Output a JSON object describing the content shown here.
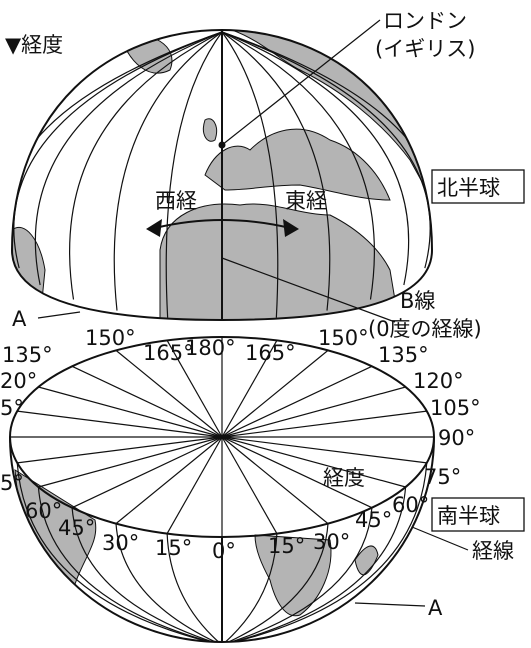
{
  "header": {
    "longitude_marker": "▼経度"
  },
  "labels": {
    "london": "ロンドン",
    "england": "(イギリス)",
    "north": "北半球",
    "south": "南半球",
    "west": "西経",
    "east": "東経",
    "a_top": "A",
    "b_line": "B線",
    "b_note": "(0度の経線)",
    "disc": "経度",
    "meridian": "経線",
    "a_bottom": "A"
  },
  "degrees": [
    "150°",
    "165°",
    "180°",
    "165°",
    "150°",
    "135°",
    "135°",
    "20°",
    "120°",
    "5°",
    "105°",
    "90°",
    "5°",
    "75°",
    "60°",
    "60°",
    "45°",
    "45°",
    "30°",
    "30°",
    "15°",
    "15°",
    "0°"
  ]
}
